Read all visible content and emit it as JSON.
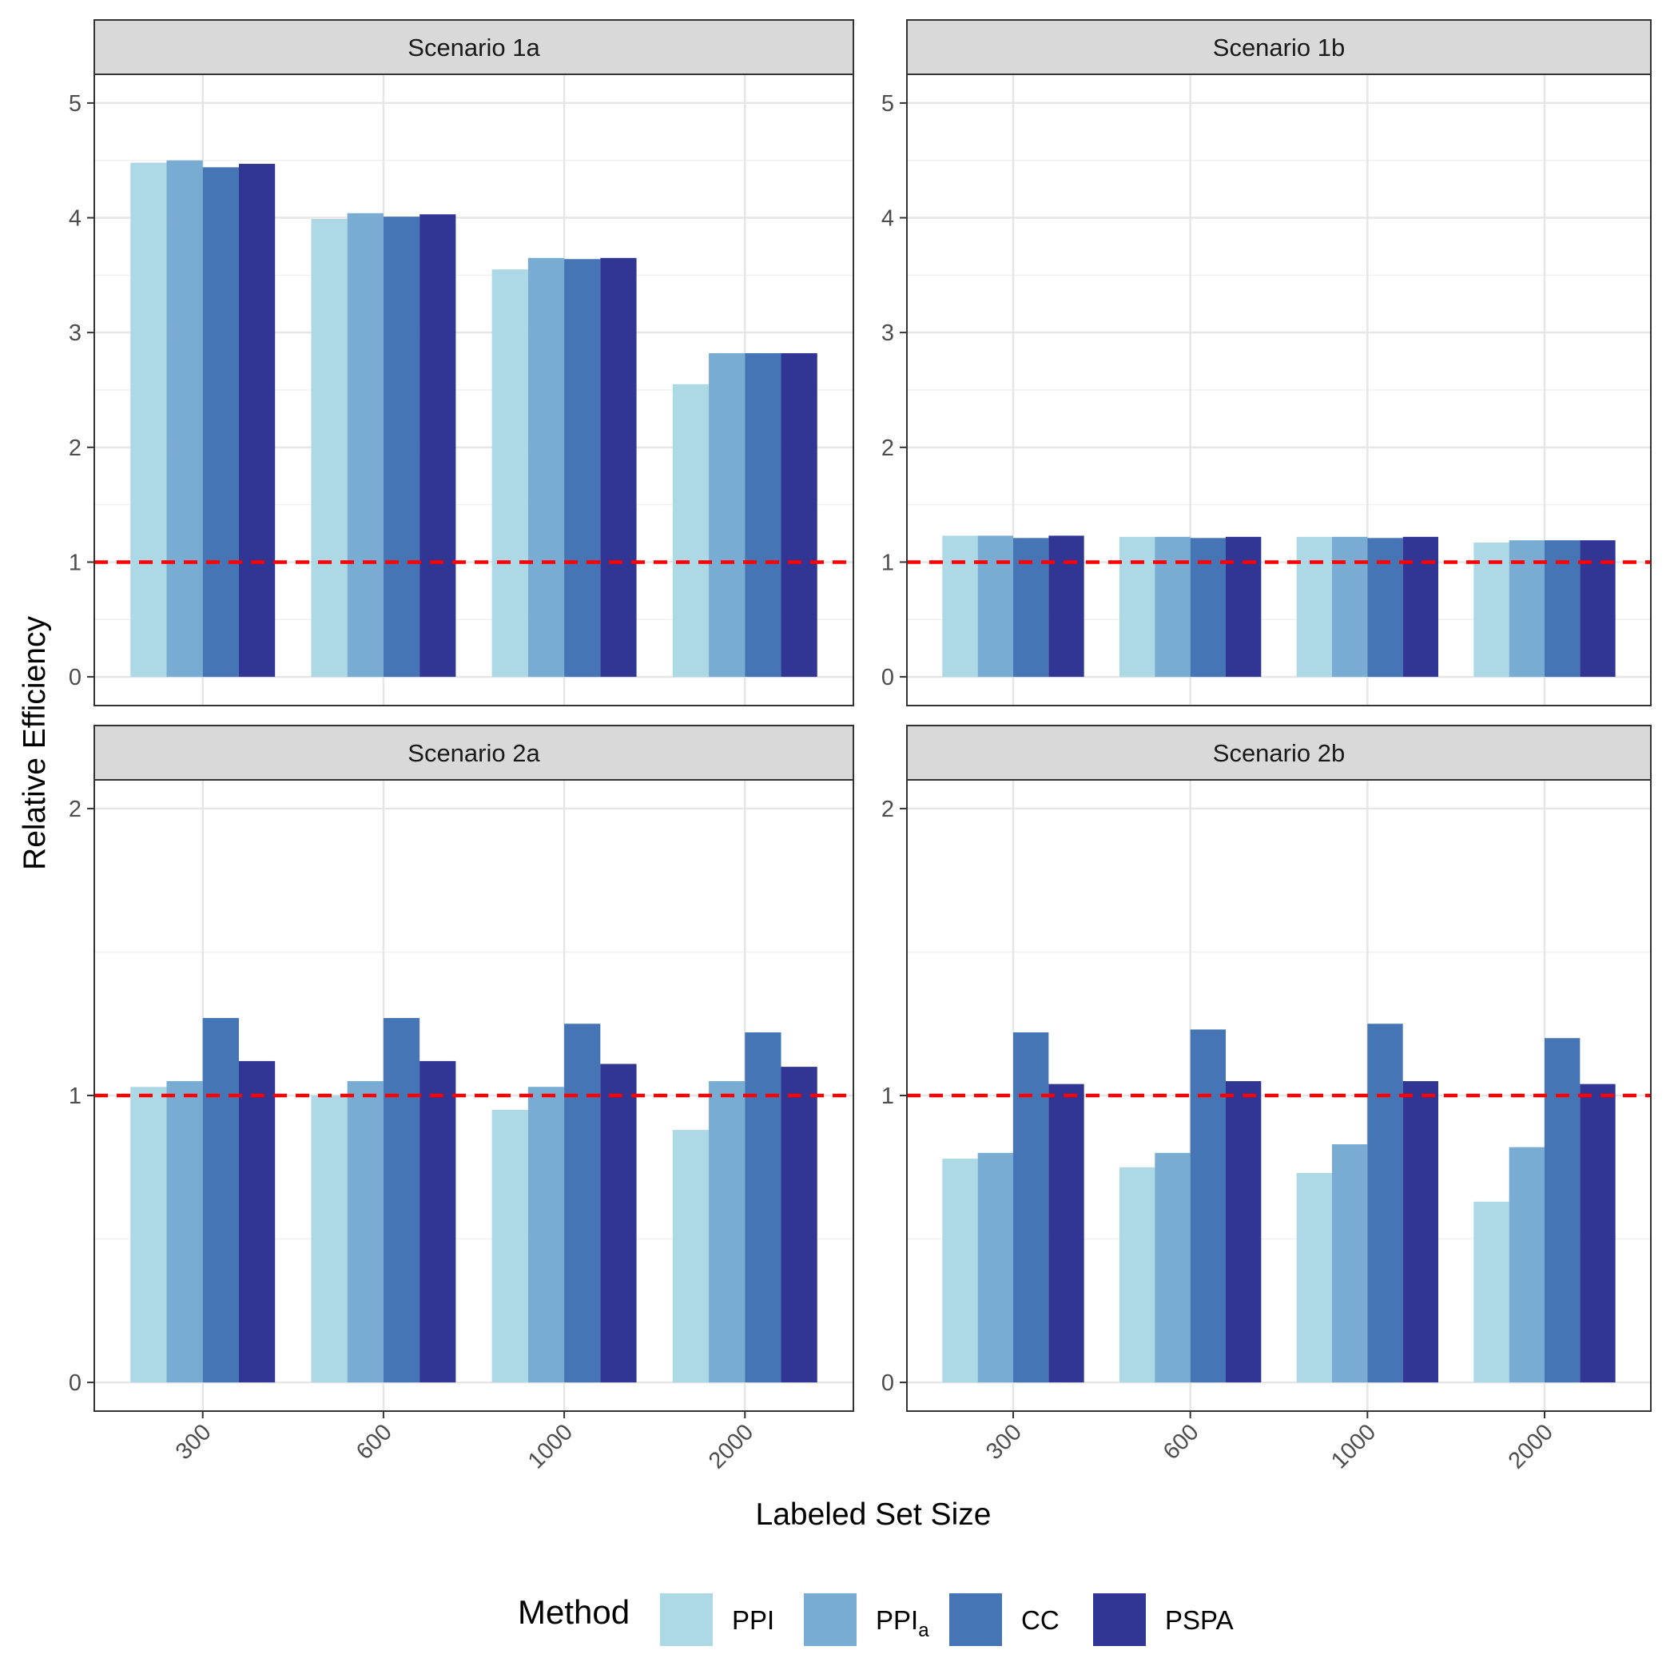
{
  "chart_data": {
    "type": "bar",
    "xlabel": "Labeled Set Size",
    "ylabel": "Relative Efficiency",
    "categories": [
      "300",
      "600",
      "1000",
      "2000"
    ],
    "reference_line": {
      "value": 1,
      "color": "#ff0000",
      "style": "dashed"
    },
    "legend": {
      "title": "Method",
      "position": "bottom",
      "entries": [
        {
          "label": "PPI",
          "subscript": "",
          "color": "#add8e6"
        },
        {
          "label": "PPI",
          "subscript": "a",
          "color": "#78acd3"
        },
        {
          "label": "CC",
          "subscript": "",
          "color": "#4575b4"
        },
        {
          "label": "PSPA",
          "subscript": "",
          "color": "#313695"
        }
      ]
    },
    "panels": [
      {
        "title": "Scenario 1a",
        "ylim": [
          -0.25,
          5.25
        ],
        "yticks": [
          0,
          1,
          2,
          3,
          4,
          5
        ],
        "yminor": [
          0.5,
          1.5,
          2.5,
          3.5,
          4.5
        ],
        "series": [
          {
            "name": "PPI",
            "values": [
              4.48,
              3.99,
              3.55,
              2.55
            ]
          },
          {
            "name": "PPIa",
            "values": [
              4.5,
              4.04,
              3.65,
              2.82
            ]
          },
          {
            "name": "CC",
            "values": [
              4.44,
              4.01,
              3.64,
              2.82
            ]
          },
          {
            "name": "PSPA",
            "values": [
              4.47,
              4.03,
              3.65,
              2.82
            ]
          }
        ]
      },
      {
        "title": "Scenario 1b",
        "ylim": [
          -0.25,
          5.25
        ],
        "yticks": [
          0,
          1,
          2,
          3,
          4,
          5
        ],
        "yminor": [
          0.5,
          1.5,
          2.5,
          3.5,
          4.5
        ],
        "series": [
          {
            "name": "PPI",
            "values": [
              1.23,
              1.22,
              1.22,
              1.17
            ]
          },
          {
            "name": "PPIa",
            "values": [
              1.23,
              1.22,
              1.22,
              1.19
            ]
          },
          {
            "name": "CC",
            "values": [
              1.21,
              1.21,
              1.21,
              1.19
            ]
          },
          {
            "name": "PSPA",
            "values": [
              1.23,
              1.22,
              1.22,
              1.19
            ]
          }
        ]
      },
      {
        "title": "Scenario 2a",
        "ylim": [
          -0.1,
          2.1
        ],
        "yticks": [
          0,
          1,
          2
        ],
        "yminor": [
          0.5,
          1.5
        ],
        "series": [
          {
            "name": "PPI",
            "values": [
              1.03,
              1.0,
              0.95,
              0.88
            ]
          },
          {
            "name": "PPIa",
            "values": [
              1.05,
              1.05,
              1.03,
              1.05
            ]
          },
          {
            "name": "CC",
            "values": [
              1.27,
              1.27,
              1.25,
              1.22
            ]
          },
          {
            "name": "PSPA",
            "values": [
              1.12,
              1.12,
              1.11,
              1.1
            ]
          }
        ]
      },
      {
        "title": "Scenario 2b",
        "ylim": [
          -0.1,
          2.1
        ],
        "yticks": [
          0,
          1,
          2
        ],
        "yminor": [
          0.5,
          1.5
        ],
        "series": [
          {
            "name": "PPI",
            "values": [
              0.78,
              0.75,
              0.73,
              0.63
            ]
          },
          {
            "name": "PPIa",
            "values": [
              0.8,
              0.8,
              0.83,
              0.82
            ]
          },
          {
            "name": "CC",
            "values": [
              1.22,
              1.23,
              1.25,
              1.2
            ]
          },
          {
            "name": "PSPA",
            "values": [
              1.04,
              1.05,
              1.05,
              1.04
            ]
          }
        ]
      }
    ]
  }
}
